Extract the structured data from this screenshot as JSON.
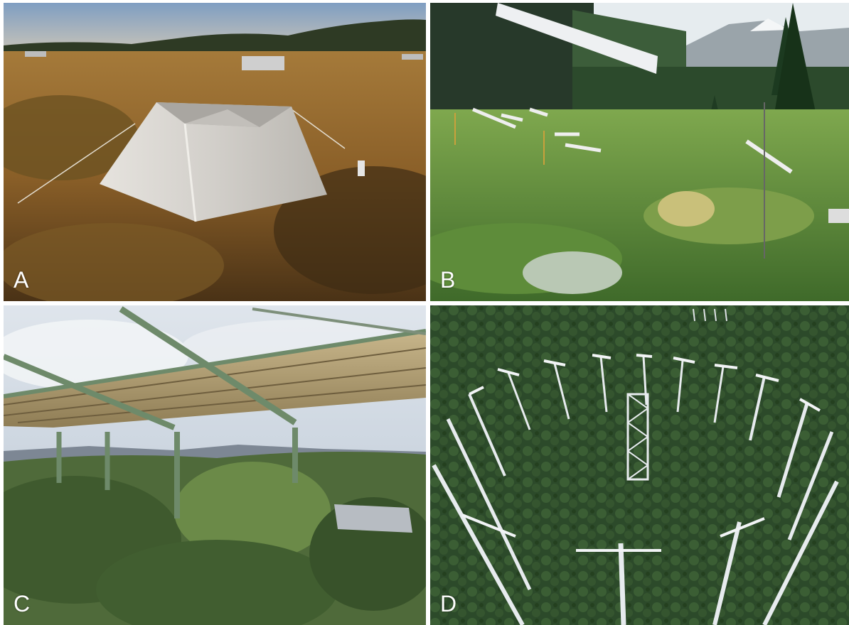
{
  "panels": [
    {
      "letter": "A",
      "scene": "open-top-chamber-heath",
      "colors": {
        "sky": "#8fa9c8",
        "ground": "#a2742f",
        "chamber": "#d9d6d0"
      }
    },
    {
      "letter": "B",
      "scene": "overhead-heaters-meadow",
      "colors": {
        "sky": "#e9eef2",
        "ground": "#5f8f3d",
        "trees": "#1f3b22"
      }
    },
    {
      "letter": "C",
      "scene": "rain-exclusion-shelter-shrubland",
      "colors": {
        "sky": "#cfd8e2",
        "roof": "#b49f70",
        "frame": "#6e8a6a",
        "vegetation": "#4f6a3a"
      }
    },
    {
      "letter": "D",
      "scene": "forest-ring-towers",
      "colors": {
        "canopy": "#2c4a2a",
        "tower": "#e7ebee"
      }
    }
  ]
}
